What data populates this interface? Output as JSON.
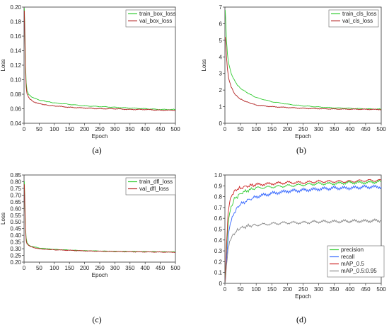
{
  "chart_data": [
    {
      "type": "line",
      "caption": "(a)",
      "xlabel": "Epoch",
      "ylabel": "Loss",
      "xlim": [
        0,
        500
      ],
      "ylim": [
        0.04,
        0.2
      ],
      "xticks": [
        0,
        50,
        100,
        150,
        200,
        250,
        300,
        350,
        400,
        450,
        500
      ],
      "yticks": [
        0.04,
        0.06,
        0.08,
        0.1,
        0.12,
        0.14,
        0.16,
        0.18,
        0.2
      ],
      "ytick_labels": [
        "0.04",
        "0.06",
        "0.08",
        "0.10",
        "0.12",
        "0.14",
        "0.16",
        "0.18",
        "0.20"
      ],
      "legend_position": "top-right",
      "series": [
        {
          "name": "train_box_loss",
          "color": "#33cc33",
          "x": [
            1,
            3,
            5,
            7,
            10,
            15,
            20,
            30,
            50,
            75,
            100,
            150,
            200,
            250,
            300,
            350,
            400,
            450,
            500
          ],
          "y": [
            0.198,
            0.16,
            0.12,
            0.096,
            0.085,
            0.08,
            0.078,
            0.075,
            0.072,
            0.07,
            0.068,
            0.066,
            0.064,
            0.063,
            0.062,
            0.061,
            0.06,
            0.059,
            0.059
          ]
        },
        {
          "name": "val_box_loss",
          "color": "#b22222",
          "x": [
            1,
            3,
            5,
            7,
            10,
            15,
            20,
            30,
            50,
            75,
            100,
            150,
            200,
            250,
            300,
            350,
            400,
            450,
            500
          ],
          "y": [
            0.195,
            0.15,
            0.11,
            0.09,
            0.08,
            0.076,
            0.073,
            0.07,
            0.067,
            0.065,
            0.064,
            0.062,
            0.061,
            0.06,
            0.06,
            0.059,
            0.059,
            0.058,
            0.058
          ]
        }
      ]
    },
    {
      "type": "line",
      "caption": "(b)",
      "xlabel": "Epoch",
      "ylabel": "Loss",
      "xlim": [
        0,
        500
      ],
      "ylim": [
        0,
        7
      ],
      "xticks": [
        0,
        50,
        100,
        150,
        200,
        250,
        300,
        350,
        400,
        450,
        500
      ],
      "yticks": [
        0,
        1,
        2,
        3,
        4,
        5,
        6,
        7
      ],
      "ytick_labels": [
        "0",
        "1",
        "2",
        "3",
        "4",
        "5",
        "6",
        "7"
      ],
      "legend_position": "top-right",
      "series": [
        {
          "name": "train_cls_loss",
          "color": "#33cc33",
          "x": [
            1,
            3,
            5,
            8,
            12,
            20,
            30,
            40,
            50,
            75,
            100,
            150,
            200,
            250,
            300,
            350,
            400,
            450,
            500
          ],
          "y": [
            6.8,
            6.0,
            5.0,
            4.2,
            3.6,
            3.0,
            2.6,
            2.3,
            2.1,
            1.8,
            1.55,
            1.3,
            1.15,
            1.05,
            0.98,
            0.93,
            0.9,
            0.87,
            0.85
          ]
        },
        {
          "name": "val_cls_loss",
          "color": "#b22222",
          "x": [
            1,
            3,
            5,
            8,
            12,
            20,
            30,
            40,
            50,
            75,
            100,
            150,
            200,
            250,
            300,
            350,
            400,
            450,
            500
          ],
          "y": [
            5.2,
            4.8,
            4.0,
            3.3,
            2.7,
            2.2,
            1.8,
            1.6,
            1.45,
            1.25,
            1.1,
            1.0,
            0.95,
            0.9,
            0.88,
            0.86,
            0.85,
            0.84,
            0.83
          ]
        }
      ]
    },
    {
      "type": "line",
      "caption": "(c)",
      "xlabel": "Epoch",
      "ylabel": "Loss",
      "xlim": [
        0,
        500
      ],
      "ylim": [
        0.2,
        0.85
      ],
      "xticks": [
        0,
        50,
        100,
        150,
        200,
        250,
        300,
        350,
        400,
        450,
        500
      ],
      "yticks": [
        0.2,
        0.25,
        0.3,
        0.35,
        0.4,
        0.45,
        0.5,
        0.55,
        0.6,
        0.65,
        0.7,
        0.75,
        0.8,
        0.85
      ],
      "ytick_labels": [
        "0.20",
        "0.25",
        "0.30",
        "0.35",
        "0.40",
        "0.45",
        "0.50",
        "0.55",
        "0.60",
        "0.65",
        "0.70",
        "0.75",
        "0.80",
        "0.85"
      ],
      "legend_position": "top-right",
      "series": [
        {
          "name": "train_dfl_loss",
          "color": "#33cc33",
          "x": [
            1,
            3,
            5,
            7,
            10,
            15,
            20,
            30,
            50,
            75,
            100,
            150,
            200,
            250,
            300,
            350,
            400,
            450,
            500
          ],
          "y": [
            0.8,
            0.6,
            0.45,
            0.38,
            0.345,
            0.33,
            0.32,
            0.315,
            0.305,
            0.3,
            0.295,
            0.29,
            0.285,
            0.283,
            0.28,
            0.279,
            0.278,
            0.277,
            0.276
          ]
        },
        {
          "name": "val_dfl_loss",
          "color": "#b22222",
          "x": [
            1,
            3,
            5,
            7,
            10,
            15,
            20,
            30,
            50,
            75,
            100,
            150,
            200,
            250,
            300,
            350,
            400,
            450,
            500
          ],
          "y": [
            0.78,
            0.58,
            0.43,
            0.36,
            0.335,
            0.325,
            0.318,
            0.31,
            0.3,
            0.295,
            0.292,
            0.288,
            0.284,
            0.281,
            0.279,
            0.277,
            0.276,
            0.275,
            0.274
          ]
        }
      ]
    },
    {
      "type": "line",
      "caption": "(d)",
      "xlabel": "Epoch",
      "ylabel": "",
      "xlim": [
        0,
        500
      ],
      "ylim": [
        0,
        1.0
      ],
      "xticks": [
        0,
        50,
        100,
        150,
        200,
        250,
        300,
        350,
        400,
        450,
        500
      ],
      "yticks": [
        0,
        0.1,
        0.2,
        0.3,
        0.4,
        0.5,
        0.6,
        0.7,
        0.8,
        0.9,
        1.0
      ],
      "ytick_labels": [
        "0",
        "0.1",
        "0.2",
        "0.3",
        "0.4",
        "0.5",
        "0.6",
        "0.7",
        "0.8",
        "0.9",
        "1.0"
      ],
      "legend_position": "bottom-right",
      "series": [
        {
          "name": "precision",
          "color": "#33cc33",
          "x": [
            1,
            5,
            10,
            15,
            20,
            30,
            40,
            50,
            75,
            100,
            150,
            200,
            250,
            300,
            350,
            400,
            450,
            500
          ],
          "y": [
            0.05,
            0.3,
            0.55,
            0.65,
            0.7,
            0.78,
            0.8,
            0.83,
            0.86,
            0.88,
            0.89,
            0.9,
            0.91,
            0.92,
            0.92,
            0.93,
            0.93,
            0.94
          ]
        },
        {
          "name": "recall",
          "color": "#3366ff",
          "x": [
            1,
            5,
            10,
            15,
            20,
            30,
            40,
            50,
            75,
            100,
            150,
            200,
            250,
            300,
            350,
            400,
            450,
            500
          ],
          "y": [
            0.02,
            0.2,
            0.4,
            0.52,
            0.58,
            0.65,
            0.7,
            0.73,
            0.77,
            0.8,
            0.83,
            0.85,
            0.86,
            0.87,
            0.88,
            0.88,
            0.89,
            0.89
          ]
        },
        {
          "name": "mAP_0.5",
          "color": "#cc2222",
          "x": [
            1,
            5,
            10,
            15,
            20,
            30,
            40,
            50,
            75,
            100,
            150,
            200,
            250,
            300,
            350,
            400,
            450,
            500
          ],
          "y": [
            0.01,
            0.35,
            0.65,
            0.75,
            0.8,
            0.85,
            0.87,
            0.88,
            0.9,
            0.91,
            0.92,
            0.93,
            0.93,
            0.94,
            0.94,
            0.94,
            0.95,
            0.95
          ]
        },
        {
          "name": "mAP_0.5:0.95",
          "color": "#888888",
          "x": [
            1,
            5,
            10,
            15,
            20,
            30,
            40,
            50,
            75,
            100,
            150,
            200,
            250,
            300,
            350,
            400,
            450,
            500
          ],
          "y": [
            0.01,
            0.15,
            0.3,
            0.38,
            0.42,
            0.46,
            0.49,
            0.51,
            0.53,
            0.54,
            0.55,
            0.56,
            0.56,
            0.57,
            0.57,
            0.575,
            0.575,
            0.58
          ]
        }
      ]
    }
  ]
}
